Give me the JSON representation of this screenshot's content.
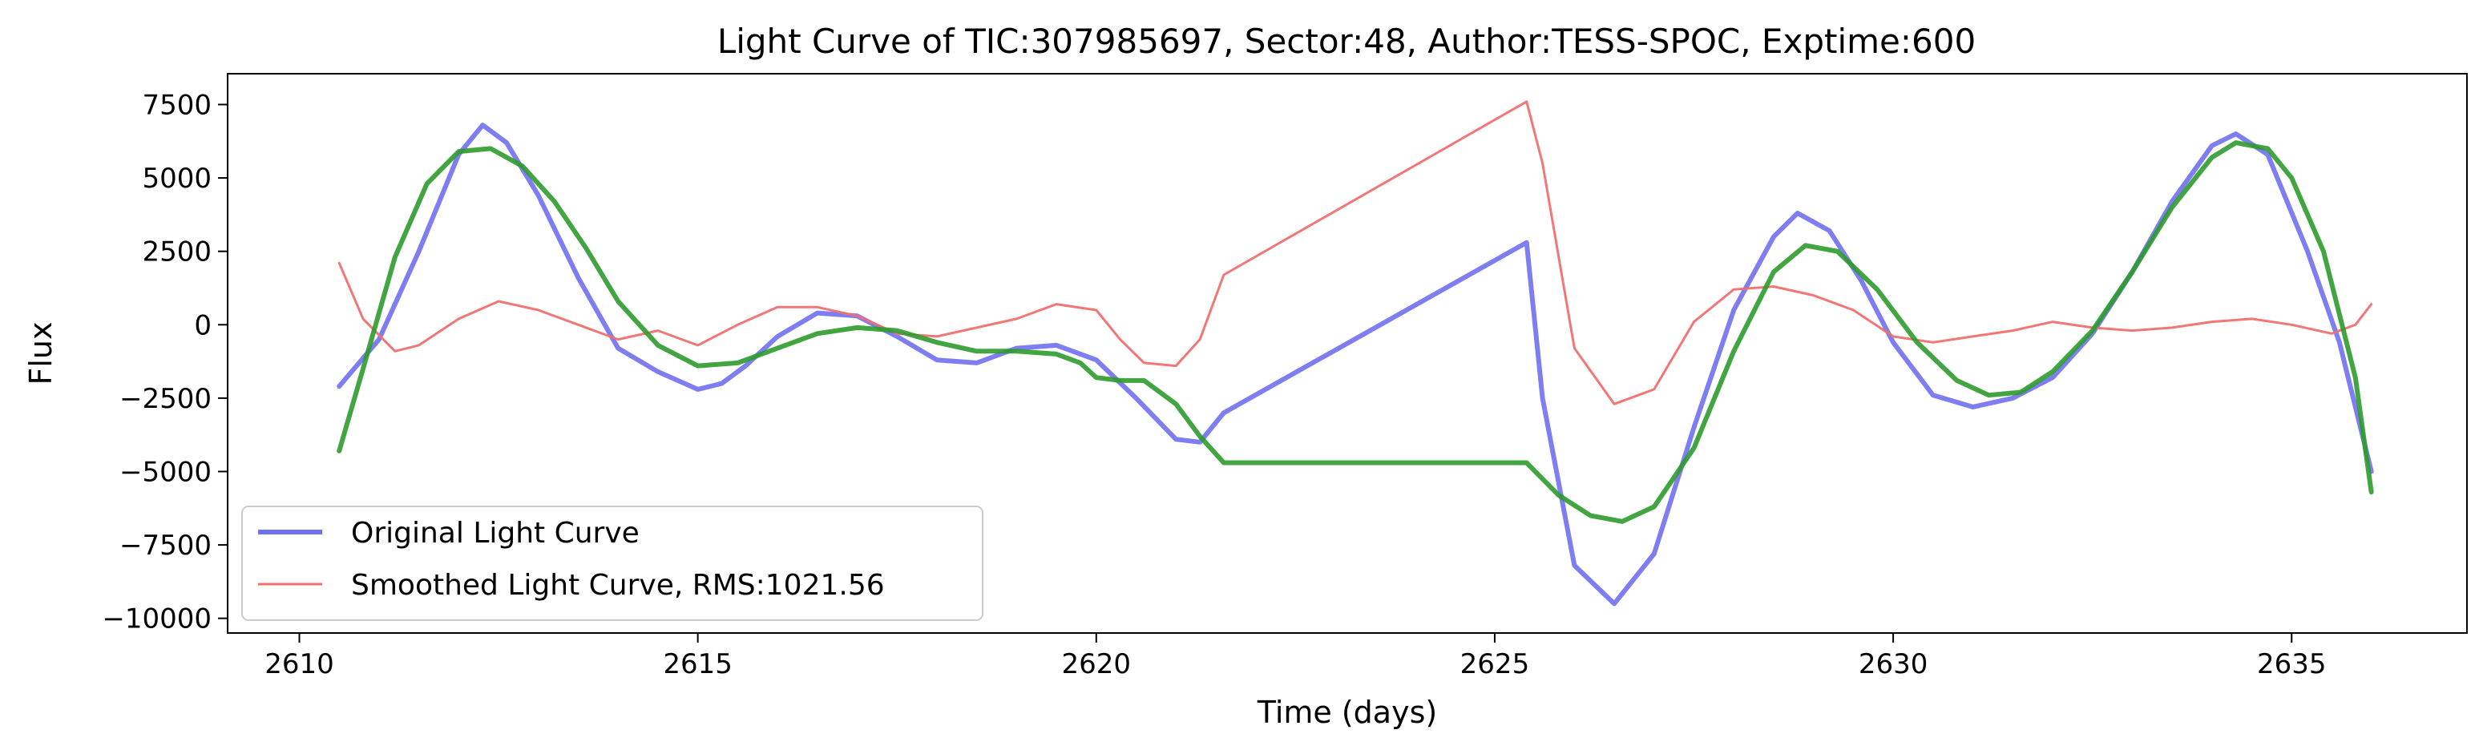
{
  "chart_data": {
    "type": "line",
    "title": "Light Curve of TIC:307985697, Sector:48, Author:TESS-SPOC, Exptime:600",
    "xlabel": "Time (days)",
    "ylabel": "Flux",
    "xlim": [
      2609.1,
      2637.2
    ],
    "ylim": [
      -10500,
      8550
    ],
    "xticks": [
      2610,
      2615,
      2620,
      2625,
      2630,
      2635
    ],
    "xtick_labels": [
      "2610",
      "2615",
      "2620",
      "2625",
      "2630",
      "2635"
    ],
    "yticks": [
      -10000,
      -7500,
      -5000,
      -2500,
      0,
      2500,
      5000,
      7500
    ],
    "ytick_labels": [
      "−10000",
      "−7500",
      "−5000",
      "−2500",
      "0",
      "2500",
      "5000",
      "7500"
    ],
    "grid": false,
    "legend_position": "lower-left",
    "series": [
      {
        "name": "Original Light Curve",
        "color": "#7070f0",
        "x": [
          2610.5,
          2611.0,
          2611.5,
          2612.0,
          2612.3,
          2612.6,
          2613.0,
          2613.5,
          2614.0,
          2614.5,
          2615.0,
          2615.3,
          2615.6,
          2616.0,
          2616.5,
          2617.0,
          2617.5,
          2618.0,
          2618.5,
          2619.0,
          2619.5,
          2620.0,
          2620.5,
          2621.0,
          2621.3,
          2621.6,
          2625.4,
          2625.6,
          2626.0,
          2626.5,
          2627.0,
          2627.5,
          2628.0,
          2628.5,
          2628.8,
          2629.2,
          2629.6,
          2630.0,
          2630.5,
          2631.0,
          2631.5,
          2632.0,
          2632.5,
          2633.0,
          2633.5,
          2634.0,
          2634.3,
          2634.7,
          2635.2,
          2635.6,
          2636.0
        ],
        "y": [
          -2100,
          -500,
          2500,
          5800,
          6800,
          6200,
          4400,
          1600,
          -800,
          -1600,
          -2200,
          -2000,
          -1400,
          -400,
          400,
          300,
          -400,
          -1200,
          -1300,
          -800,
          -700,
          -1200,
          -2500,
          -3900,
          -4000,
          -3000,
          2800,
          -2500,
          -8200,
          -9500,
          -7800,
          -3500,
          500,
          3000,
          3800,
          3200,
          1500,
          -600,
          -2400,
          -2800,
          -2500,
          -1800,
          -300,
          1800,
          4200,
          6100,
          6500,
          5800,
          2500,
          -600,
          -5000
        ]
      },
      {
        "name": "Smoothed Light Curve, RMS:1021.56",
        "color": "#f07070",
        "x": [
          2610.5,
          2610.8,
          2611.2,
          2611.5,
          2612.0,
          2612.5,
          2613.0,
          2613.5,
          2614.0,
          2614.5,
          2615.0,
          2615.5,
          2616.0,
          2616.5,
          2617.0,
          2617.5,
          2618.0,
          2618.5,
          2619.0,
          2619.5,
          2620.0,
          2620.3,
          2620.6,
          2621.0,
          2621.3,
          2621.6,
          2625.4,
          2625.6,
          2626.0,
          2626.5,
          2627.0,
          2627.5,
          2628.0,
          2628.5,
          2629.0,
          2629.5,
          2630.0,
          2630.5,
          2631.0,
          2631.5,
          2632.0,
          2632.5,
          2633.0,
          2633.5,
          2634.0,
          2634.5,
          2635.0,
          2635.5,
          2635.8,
          2636.0
        ],
        "y": [
          2100,
          200,
          -900,
          -700,
          200,
          800,
          500,
          0,
          -500,
          -200,
          -700,
          0,
          600,
          600,
          300,
          -300,
          -400,
          -100,
          200,
          700,
          500,
          -500,
          -1300,
          -1400,
          -500,
          1700,
          7600,
          5500,
          -800,
          -2700,
          -2200,
          100,
          1200,
          1300,
          1000,
          500,
          -400,
          -600,
          -400,
          -200,
          100,
          -100,
          -200,
          -100,
          100,
          200,
          0,
          -300,
          0,
          700
        ]
      },
      {
        "name": "",
        "color": "#2e9b2e",
        "x": [
          2610.5,
          2610.8,
          2611.2,
          2611.6,
          2612.0,
          2612.4,
          2612.8,
          2613.2,
          2613.6,
          2614.0,
          2614.5,
          2615.0,
          2615.5,
          2616.0,
          2616.5,
          2617.0,
          2617.5,
          2618.0,
          2618.5,
          2619.0,
          2619.5,
          2619.8,
          2620.0,
          2620.3,
          2620.6,
          2621.0,
          2621.3,
          2621.6,
          2625.4,
          2625.8,
          2626.2,
          2626.6,
          2627.0,
          2627.5,
          2628.0,
          2628.5,
          2628.9,
          2629.3,
          2629.8,
          2630.3,
          2630.8,
          2631.2,
          2631.6,
          2632.0,
          2632.5,
          2633.0,
          2633.5,
          2634.0,
          2634.3,
          2634.7,
          2635.0,
          2635.4,
          2635.8,
          2636.0
        ],
        "y": [
          -4300,
          -1500,
          2300,
          4800,
          5900,
          6000,
          5400,
          4200,
          2600,
          800,
          -700,
          -1400,
          -1300,
          -800,
          -300,
          -100,
          -200,
          -600,
          -900,
          -900,
          -1000,
          -1300,
          -1800,
          -1900,
          -1900,
          -2700,
          -3800,
          -4700,
          -4700,
          -5800,
          -6500,
          -6700,
          -6200,
          -4200,
          -900,
          1800,
          2700,
          2500,
          1200,
          -600,
          -1900,
          -2400,
          -2300,
          -1600,
          -200,
          1800,
          4000,
          5700,
          6200,
          6000,
          5000,
          2500,
          -1800,
          -5700
        ]
      }
    ],
    "legend": {
      "entries": [
        "Original Light Curve",
        "Smoothed Light Curve, RMS:1021.56"
      ]
    }
  }
}
